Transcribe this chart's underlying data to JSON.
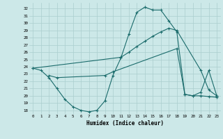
{
  "line1_x": [
    0,
    1,
    2,
    3,
    4,
    5,
    6,
    7,
    8,
    9,
    10,
    11,
    12,
    13,
    14,
    15,
    16,
    17,
    18,
    19,
    20,
    21,
    22,
    23
  ],
  "line1_y": [
    23.8,
    23.5,
    22.5,
    21.0,
    19.5,
    18.5,
    18.0,
    17.8,
    18.0,
    19.3,
    22.8,
    25.2,
    28.5,
    31.5,
    32.2,
    31.8,
    31.8,
    30.3,
    28.8,
    20.2,
    20.0,
    20.5,
    23.5,
    20.0
  ],
  "line2_x": [
    0,
    11,
    12,
    13,
    14,
    15,
    16,
    17,
    18,
    21,
    22,
    23
  ],
  "line2_y": [
    23.8,
    25.3,
    26.0,
    26.8,
    27.5,
    28.2,
    28.8,
    29.3,
    29.0,
    23.5,
    20.8,
    20.0
  ],
  "line3_x": [
    2,
    3,
    9,
    10,
    18,
    19,
    20,
    21,
    22,
    23
  ],
  "line3_y": [
    22.8,
    22.5,
    22.8,
    23.3,
    26.5,
    20.2,
    20.0,
    20.0,
    19.9,
    19.8
  ],
  "bg_color": "#cce8e8",
  "grid_color": "#aacece",
  "line_color": "#1a6b6b",
  "xlim": [
    -0.5,
    23.5
  ],
  "ylim": [
    17.5,
    32.8
  ],
  "yticks": [
    18,
    19,
    20,
    21,
    22,
    23,
    24,
    25,
    26,
    27,
    28,
    29,
    30,
    31,
    32
  ],
  "xticks": [
    0,
    1,
    2,
    3,
    4,
    5,
    6,
    7,
    8,
    9,
    10,
    11,
    12,
    13,
    14,
    15,
    16,
    17,
    18,
    19,
    20,
    21,
    22,
    23
  ],
  "xlabel": "Humidex (Indice chaleur)"
}
